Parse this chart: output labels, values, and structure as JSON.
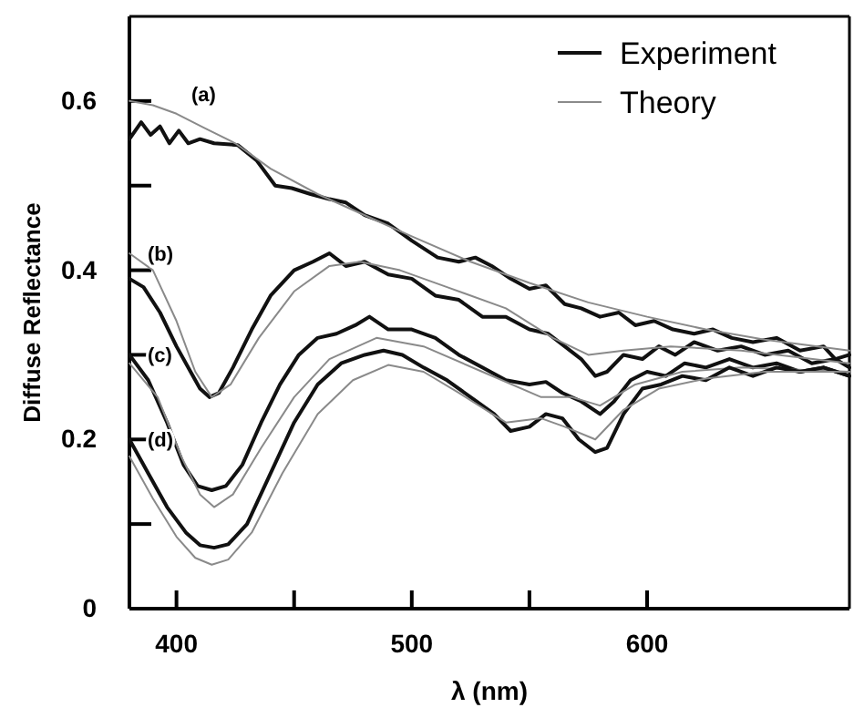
{
  "chart_data": {
    "type": "line",
    "xlabel": "λ (nm)",
    "ylabel": "Diffuse Reflectance",
    "xlim": [
      380,
      686
    ],
    "ylim": [
      0,
      0.7
    ],
    "xticks": [
      400,
      {
        "value": 450,
        "label": null
      },
      500,
      {
        "value": 550,
        "label": null
      },
      600
    ],
    "yticks": [
      0,
      {
        "value": 0.1,
        "label": null
      },
      0.2,
      {
        "value": 0.3,
        "label": null
      },
      0.4,
      {
        "value": 0.5,
        "label": null
      },
      0.6
    ],
    "grid": false,
    "legend": "top right",
    "line_style": "solid",
    "marker": "none",
    "annotations": [
      "(a)",
      "(b)",
      "(c)",
      "(d)"
    ],
    "series": [
      {
        "name": "Experiment",
        "color": "#111111",
        "x": [
          380,
          385,
          389,
          393,
          397,
          401,
          405,
          410,
          416,
          426,
          434,
          442,
          449,
          457,
          465,
          472,
          480,
          490,
          500,
          511,
          520,
          527,
          534,
          542,
          550,
          557,
          565,
          572,
          580,
          588,
          595,
          603,
          611,
          620,
          628,
          636,
          645,
          655,
          665,
          675,
          680,
          686
        ],
        "values": [
          0.555,
          0.575,
          0.56,
          0.57,
          0.55,
          0.565,
          0.55,
          0.555,
          0.55,
          0.548,
          0.53,
          0.5,
          0.497,
          0.49,
          0.484,
          0.48,
          0.465,
          0.455,
          0.435,
          0.415,
          0.41,
          0.415,
          0.405,
          0.39,
          0.378,
          0.382,
          0.36,
          0.355,
          0.345,
          0.35,
          0.335,
          0.34,
          0.33,
          0.325,
          0.33,
          0.32,
          0.315,
          0.32,
          0.305,
          0.31,
          0.295,
          0.3
        ]
      },
      {
        "name": "Theory",
        "color": "#8a8a8a",
        "x": [
          380,
          390,
          400,
          412,
          425,
          440,
          460,
          480,
          500,
          525,
          550,
          575,
          600,
          625,
          650,
          686
        ],
        "values": [
          0.6,
          0.595,
          0.585,
          0.568,
          0.55,
          0.52,
          0.49,
          0.465,
          0.44,
          0.41,
          0.385,
          0.362,
          0.345,
          0.33,
          0.318,
          0.305
        ]
      },
      {
        "color": "#111111",
        "x": [
          380,
          386,
          393,
          400,
          406,
          410,
          414,
          418,
          424,
          432,
          440,
          450,
          458,
          465,
          472,
          480,
          490,
          500,
          510,
          520,
          530,
          540,
          550,
          558,
          565,
          572,
          578,
          583,
          590,
          598,
          605,
          612,
          620,
          630,
          640,
          650,
          660,
          670,
          680,
          686
        ],
        "values": [
          0.39,
          0.38,
          0.35,
          0.31,
          0.28,
          0.26,
          0.25,
          0.255,
          0.285,
          0.33,
          0.37,
          0.4,
          0.41,
          0.42,
          0.405,
          0.41,
          0.395,
          0.39,
          0.37,
          0.365,
          0.345,
          0.345,
          0.33,
          0.325,
          0.31,
          0.295,
          0.275,
          0.28,
          0.3,
          0.295,
          0.31,
          0.3,
          0.315,
          0.305,
          0.31,
          0.3,
          0.305,
          0.29,
          0.295,
          0.285
        ]
      },
      {
        "color": "#8a8a8a",
        "x": [
          380,
          390,
          400,
          408,
          415,
          423,
          435,
          450,
          465,
          478,
          495,
          515,
          540,
          560,
          575,
          590,
          610,
          640,
          686
        ],
        "values": [
          0.42,
          0.4,
          0.34,
          0.28,
          0.25,
          0.265,
          0.32,
          0.375,
          0.405,
          0.41,
          0.4,
          0.38,
          0.355,
          0.32,
          0.3,
          0.305,
          0.31,
          0.305,
          0.29
        ]
      },
      {
        "color": "#111111",
        "x": [
          380,
          388,
          396,
          403,
          409,
          415,
          421,
          428,
          436,
          444,
          452,
          460,
          468,
          476,
          482,
          490,
          500,
          510,
          520,
          530,
          540,
          550,
          557,
          564,
          572,
          580,
          586,
          593,
          600,
          608,
          616,
          625,
          635,
          645,
          655,
          665,
          675,
          686
        ],
        "values": [
          0.3,
          0.27,
          0.22,
          0.17,
          0.145,
          0.14,
          0.145,
          0.17,
          0.22,
          0.265,
          0.3,
          0.32,
          0.325,
          0.335,
          0.345,
          0.33,
          0.33,
          0.32,
          0.3,
          0.285,
          0.27,
          0.265,
          0.268,
          0.255,
          0.245,
          0.23,
          0.245,
          0.27,
          0.28,
          0.275,
          0.29,
          0.285,
          0.295,
          0.285,
          0.29,
          0.28,
          0.285,
          0.275
        ]
      },
      {
        "color": "#8a8a8a",
        "x": [
          380,
          392,
          402,
          410,
          416,
          424,
          436,
          450,
          465,
          485,
          505,
          530,
          555,
          568,
          580,
          595,
          615,
          640,
          686
        ],
        "values": [
          0.29,
          0.25,
          0.18,
          0.135,
          0.12,
          0.135,
          0.19,
          0.25,
          0.295,
          0.32,
          0.31,
          0.28,
          0.25,
          0.25,
          0.24,
          0.265,
          0.28,
          0.285,
          0.28
        ]
      },
      {
        "color": "#111111",
        "x": [
          380,
          388,
          396,
          404,
          410,
          416,
          422,
          430,
          440,
          450,
          460,
          470,
          480,
          488,
          496,
          505,
          515,
          525,
          535,
          542,
          550,
          557,
          564,
          571,
          578,
          583,
          590,
          598,
          606,
          615,
          625,
          635,
          645,
          655,
          665,
          675,
          686
        ],
        "values": [
          0.2,
          0.16,
          0.12,
          0.09,
          0.075,
          0.072,
          0.076,
          0.1,
          0.16,
          0.22,
          0.265,
          0.29,
          0.3,
          0.305,
          0.3,
          0.285,
          0.27,
          0.25,
          0.23,
          0.21,
          0.215,
          0.23,
          0.225,
          0.2,
          0.185,
          0.19,
          0.23,
          0.26,
          0.265,
          0.275,
          0.27,
          0.285,
          0.275,
          0.285,
          0.28,
          0.285,
          0.275
        ]
      },
      {
        "color": "#8a8a8a",
        "x": [
          380,
          390,
          400,
          408,
          415,
          422,
          432,
          445,
          460,
          475,
          490,
          505,
          520,
          540,
          555,
          565,
          578,
          590,
          605,
          625,
          650,
          686
        ],
        "values": [
          0.18,
          0.13,
          0.085,
          0.06,
          0.052,
          0.058,
          0.09,
          0.16,
          0.23,
          0.27,
          0.288,
          0.28,
          0.255,
          0.22,
          0.225,
          0.215,
          0.2,
          0.235,
          0.26,
          0.272,
          0.28,
          0.28
        ]
      }
    ]
  }
}
